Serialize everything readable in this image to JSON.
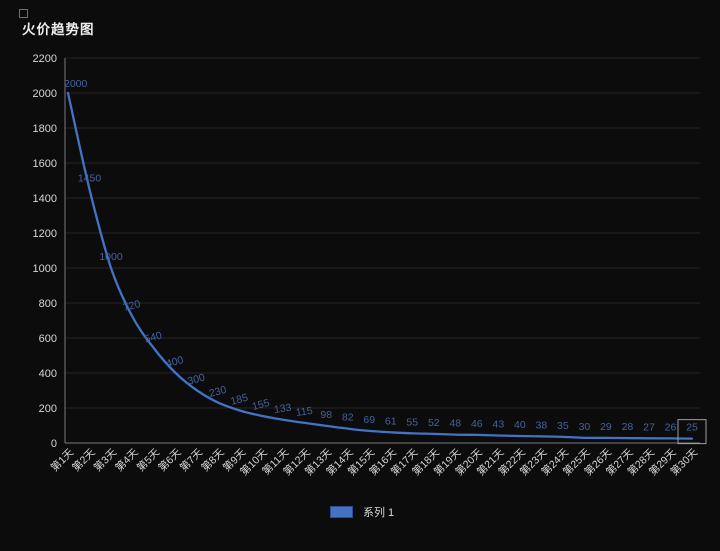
{
  "title": "火价趋势图",
  "legend": {
    "label": "系列 1",
    "swatch_color": "#4472c4"
  },
  "colors": {
    "background": "#0c0c0c",
    "line": "#4472c4",
    "data_label": "#44629f",
    "grid": "#242424",
    "axis": "#7a7a7a",
    "tick_label": "#d6d6d6",
    "title": "#ededed",
    "selection_box": "#9e9e9e"
  },
  "chart_data": {
    "type": "line",
    "title": "火价趋势图",
    "categories": [
      "第1天",
      "第2天",
      "第3天",
      "第4天",
      "第5天",
      "第6天",
      "第7天",
      "第8天",
      "第9天",
      "第10天",
      "第11天",
      "第12天",
      "第13天",
      "第14天",
      "第15天",
      "第16天",
      "第17天",
      "第18天",
      "第19天",
      "第20天",
      "第21天",
      "第22天",
      "第23天",
      "第24天",
      "第25天",
      "第26天",
      "第27天",
      "第28天",
      "第29天",
      "第30天"
    ],
    "series": [
      {
        "name": "系列 1",
        "values": [
          2000,
          1450,
          1000,
          720,
          540,
          400,
          300,
          230,
          185,
          155,
          133,
          115,
          98,
          82,
          69,
          61,
          55,
          52,
          48,
          46,
          43,
          40,
          38,
          35,
          30,
          29,
          28,
          27,
          26,
          25
        ]
      }
    ],
    "xlabel": "",
    "ylabel": "",
    "ylim": [
      0,
      2200
    ],
    "ytick_interval": 200,
    "yticks": [
      0,
      200,
      400,
      600,
      800,
      1000,
      1200,
      1400,
      1600,
      1800,
      2000,
      2200
    ],
    "grid": true,
    "smooth_line": true,
    "data_labels": true,
    "x_label_rotation": -45,
    "legend_position": "bottom",
    "selected_data_label": "25"
  }
}
